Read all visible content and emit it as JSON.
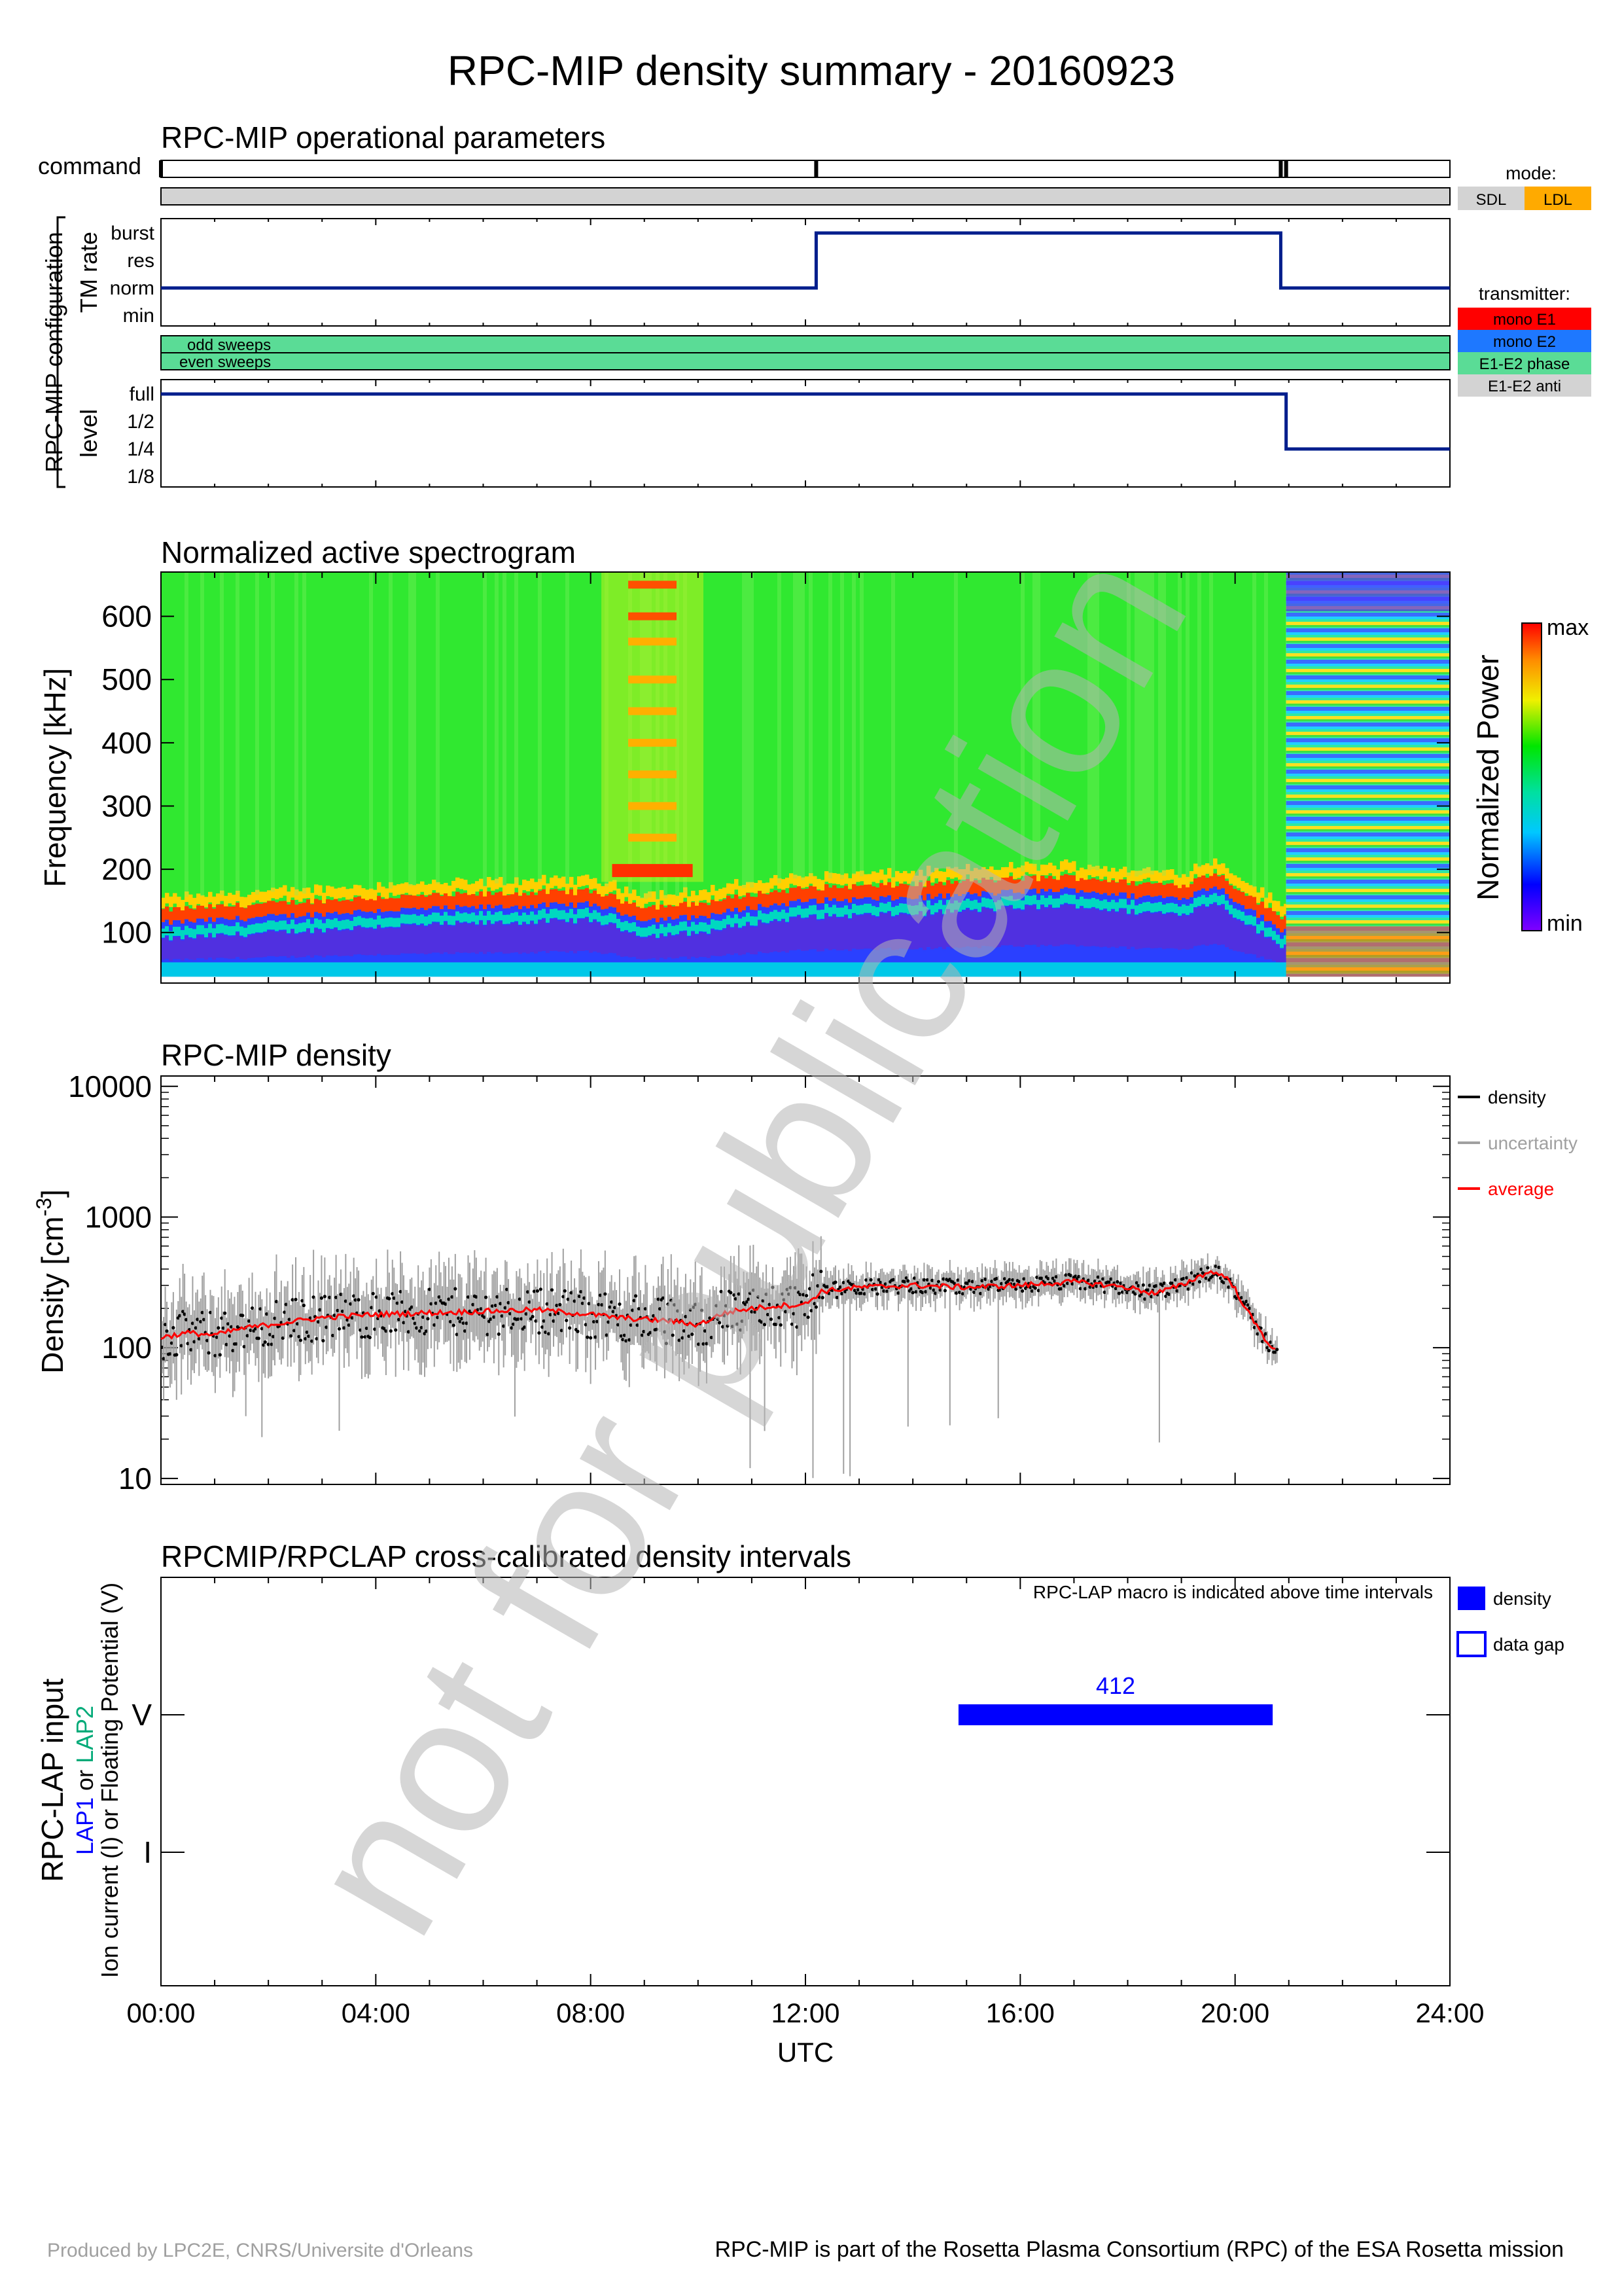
{
  "page": {
    "title": "RPC-MIP density summary - 20160923",
    "footer_left": "Produced by LPC2E, CNRS/Universite d'Orleans",
    "footer_right": "RPC-MIP is part of the Rosetta Plasma Consortium (RPC) of the ESA Rosetta mission",
    "watermark": "not for publication"
  },
  "colors": {
    "nav_line": "#001e8c",
    "mode_sdl": "#d3d3d3",
    "mode_ldl": "#ffaa00",
    "tx_mono_e1": "#ff0000",
    "tx_mono_e2": "#1e78ff",
    "tx_e1e2_phase": "#5adc96",
    "tx_e1e2_anti": "#d3d3d3",
    "density": "#000000",
    "uncertainty": "#a0a0a0",
    "average": "#ff0000",
    "lap_bar": "#0000ff"
  },
  "time_axis": {
    "label": "UTC",
    "range_hours": [
      0,
      24
    ],
    "ticks": [
      {
        "h": 0,
        "label": "00:00"
      },
      {
        "h": 4,
        "label": "04:00"
      },
      {
        "h": 8,
        "label": "08:00"
      },
      {
        "h": 12,
        "label": "12:00"
      },
      {
        "h": 16,
        "label": "16:00"
      },
      {
        "h": 20,
        "label": "20:00"
      },
      {
        "h": 24,
        "label": "24:00"
      }
    ]
  },
  "ops": {
    "title": "RPC-MIP operational parameters",
    "command_label": "command",
    "command_marks_h": [
      0.0,
      12.2,
      20.85,
      20.95
    ],
    "config_label": "RPC-MIP configuration",
    "tm_label": "TM rate",
    "tm_levels": [
      "burst",
      "res",
      "norm",
      "min"
    ],
    "tm_steps": [
      {
        "h": 0,
        "level": "norm"
      },
      {
        "h": 12.2,
        "level": "burst"
      },
      {
        "h": 20.85,
        "level": "norm"
      }
    ],
    "sweeps": [
      "odd sweeps",
      "even sweeps"
    ],
    "level_label": "level",
    "levels": [
      "full",
      "1/2",
      "1/4",
      "1/8"
    ],
    "level_steps": [
      {
        "h": 0,
        "level": "full"
      },
      {
        "h": 20.95,
        "level": "1/4"
      }
    ],
    "mode": {
      "title": "mode:",
      "items": [
        "SDL",
        "LDL"
      ]
    },
    "transmitter": {
      "title": "transmitter:",
      "items": [
        "mono E1",
        "mono E2",
        "E1-E2 phase",
        "E1-E2 anti"
      ]
    }
  },
  "chart_data": [
    {
      "type": "heatmap",
      "title": "Normalized active spectrogram",
      "ylabel": "Frequency [kHz]",
      "ylim": [
        20,
        670
      ],
      "yticks": [
        100,
        200,
        300,
        400,
        500,
        600
      ],
      "colorbar_label": "Normalized Power",
      "colorbar_max": "max",
      "colorbar_min": "min",
      "plasma_line_kHz": [
        {
          "h": 0,
          "f": 115
        },
        {
          "h": 2,
          "f": 125
        },
        {
          "h": 4,
          "f": 135
        },
        {
          "h": 6,
          "f": 140
        },
        {
          "h": 8,
          "f": 145
        },
        {
          "h": 9,
          "f": 120
        },
        {
          "h": 10,
          "f": 125
        },
        {
          "h": 11,
          "f": 140
        },
        {
          "h": 12,
          "f": 150
        },
        {
          "h": 14,
          "f": 155
        },
        {
          "h": 16,
          "f": 165
        },
        {
          "h": 17,
          "f": 168
        },
        {
          "h": 18,
          "f": 158
        },
        {
          "h": 19,
          "f": 155
        },
        {
          "h": 19.6,
          "f": 175
        },
        {
          "h": 20,
          "f": 150
        },
        {
          "h": 20.8,
          "f": 105
        }
      ],
      "bursts_h": [
        [
          8.2,
          10.1
        ]
      ],
      "banded_region_h": [
        20.95,
        24
      ]
    },
    {
      "type": "line",
      "title": "RPC-MIP density",
      "ylabel": "Density [cm",
      "ylabel_unit_exp": "-3",
      "ylabel_close": "]",
      "yscale": "log",
      "ylim": [
        9,
        12000
      ],
      "yticks": [
        "10",
        "100",
        "1000",
        "10000"
      ],
      "xlim": [
        0,
        24
      ],
      "legend": [
        "density",
        "uncertainty",
        "average"
      ],
      "series": [
        {
          "name": "average",
          "x": [
            0,
            0.5,
            1,
            1.5,
            2,
            3,
            4,
            5,
            6,
            7,
            8,
            8.5,
            9,
            9.5,
            10,
            10.5,
            11,
            11.5,
            12,
            12.3,
            13,
            14,
            15,
            16,
            17,
            18,
            18.5,
            19,
            19.5,
            19.8,
            20,
            20.3,
            20.6,
            20.8
          ],
          "y": [
            120,
            130,
            125,
            140,
            150,
            170,
            180,
            185,
            190,
            195,
            180,
            170,
            165,
            160,
            150,
            185,
            200,
            210,
            215,
            270,
            290,
            300,
            290,
            300,
            320,
            290,
            260,
            300,
            380,
            360,
            280,
            170,
            110,
            95
          ]
        }
      ]
    },
    {
      "type": "bar",
      "title": "RPCMIP/RPCLAP cross-calibrated density intervals",
      "ylabel": "RPC-LAP input",
      "ylabel2_lap1": "LAP1",
      "ylabel2_or": " or ",
      "ylabel2_lap2": "LAP2",
      "ylabel3": "Ion current (I) or Floating Potential (V)",
      "yticks": [
        "V",
        "I"
      ],
      "note": "RPC-LAP macro is indicated above time intervals",
      "legend": [
        "density",
        "data gap"
      ],
      "intervals": [
        {
          "start_h": 14.85,
          "end_h": 20.7,
          "row": "V",
          "macro": "412"
        }
      ]
    }
  ]
}
